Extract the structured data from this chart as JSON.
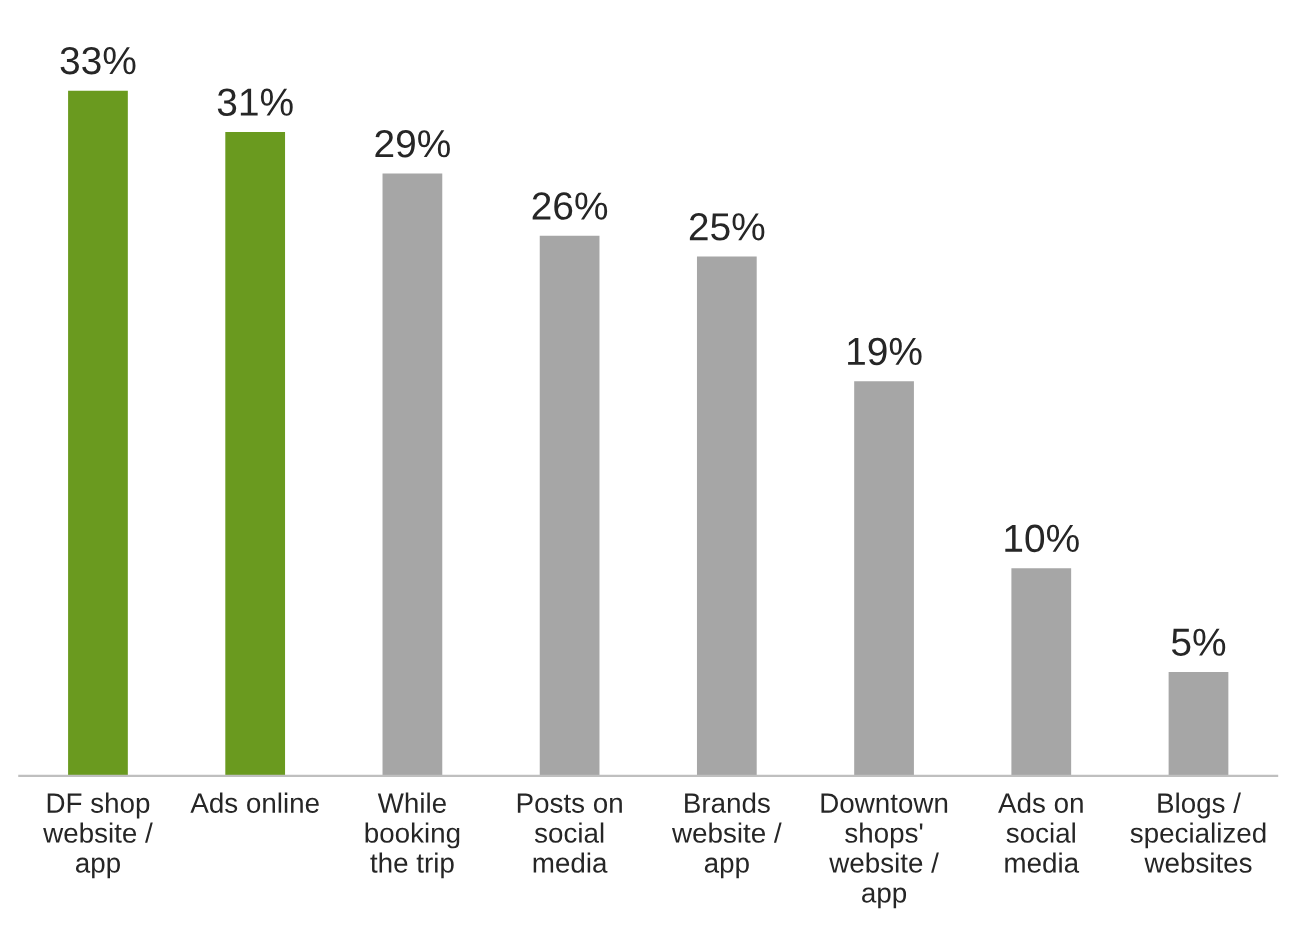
{
  "chart_data": {
    "type": "bar",
    "categories": [
      "DF shop\nwebsite /\napp",
      "Ads online",
      "While\nbooking\nthe trip",
      "Posts on\nsocial\nmedia",
      "Brands\nwebsite /\napp",
      "Downtown\nshops'\nwebsite /\napp",
      "Ads on\nsocial\nmedia",
      "Blogs /\nspecialized\nwebsites"
    ],
    "values": [
      33,
      31,
      29,
      26,
      25,
      19,
      10,
      5
    ],
    "colors": [
      "#6a9a1f",
      "#6a9a1f",
      "#a6a6a6",
      "#a6a6a6",
      "#a6a6a6",
      "#a6a6a6",
      "#a6a6a6",
      "#a6a6a6"
    ],
    "value_labels": [
      "33%",
      "31%",
      "29%",
      "26%",
      "25%",
      "19%",
      "10%",
      "5%"
    ]
  }
}
